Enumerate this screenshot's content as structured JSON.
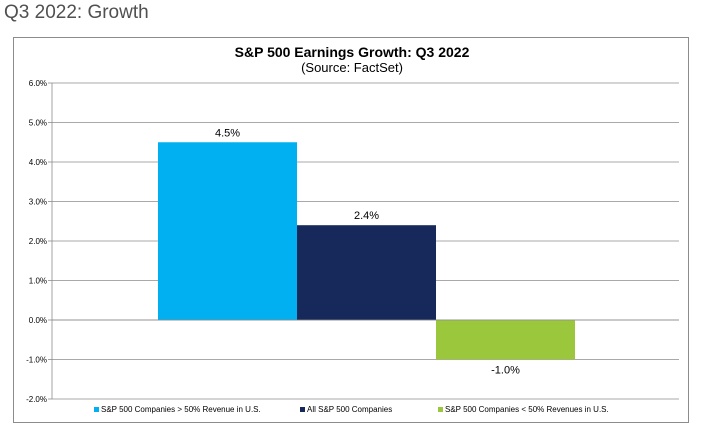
{
  "page": {
    "heading": "Q3 2022: Growth"
  },
  "chart_data": {
    "type": "bar",
    "title": "S&P 500 Earnings Growth: Q3 2022",
    "subtitle": "(Source: FactSet)",
    "xlabel": "",
    "ylabel": "",
    "ylim": [
      -2.0,
      6.0
    ],
    "yticks": [
      "6.0%",
      "5.0%",
      "4.0%",
      "3.0%",
      "2.0%",
      "1.0%",
      "0.0%",
      "-1.0%",
      "-2.0%"
    ],
    "grid": true,
    "legend_position": "bottom",
    "bars": [
      {
        "name": "S&P 500 Companies > 50% Revenue in U.S.",
        "value": 4.5,
        "label": "4.5%",
        "color": "#00b0f0"
      },
      {
        "name": "All S&P 500 Companies",
        "value": 2.4,
        "label": "2.4%",
        "color": "#17295a"
      },
      {
        "name": "S&P 500 Companies < 50% Revenues in U.S.",
        "value": -1.0,
        "label": "-1.0%",
        "color": "#9bc73c"
      }
    ]
  }
}
